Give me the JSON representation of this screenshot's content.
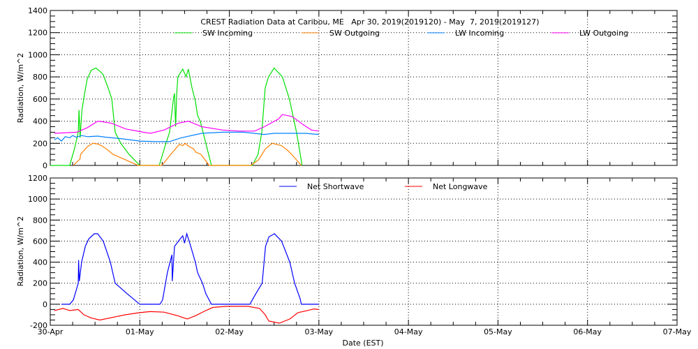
{
  "chart_data": [
    {
      "type": "line",
      "title": "CREST Radiation Data at Caribou, ME   Apr 30, 2019(2019120) - May  7, 2019(2019127)",
      "xlabel": "",
      "ylabel": "Radiation, W/m^2",
      "x_unit": "hours since 30-Apr 00:00 EST",
      "xlim": [
        0,
        168
      ],
      "ylim": [
        0,
        1400
      ],
      "yticks": [
        0,
        200,
        400,
        600,
        800,
        1000,
        1200,
        1400
      ],
      "grid": true,
      "legend_position": "top",
      "series": [
        {
          "name": "SW Incoming",
          "color": "#00e000",
          "points": [
            [
              0,
              0
            ],
            [
              5.2,
              0
            ],
            [
              6.5,
              150
            ],
            [
              7.5,
              300
            ],
            [
              7.7,
              500
            ],
            [
              8,
              250
            ],
            [
              8.5,
              500
            ],
            [
              9.2,
              650
            ],
            [
              9.9,
              780
            ],
            [
              11,
              860
            ],
            [
              12.2,
              880
            ],
            [
              13,
              860
            ],
            [
              14.2,
              820
            ],
            [
              15.5,
              700
            ],
            [
              16.5,
              600
            ],
            [
              17.4,
              300
            ],
            [
              18.9,
              200
            ],
            [
              21.1,
              100
            ],
            [
              24,
              0
            ],
            [
              29.2,
              0
            ],
            [
              31,
              200
            ],
            [
              32,
              300
            ],
            [
              33,
              600
            ],
            [
              33.3,
              650
            ],
            [
              33.6,
              350
            ],
            [
              33.9,
              650
            ],
            [
              34.2,
              800
            ],
            [
              35.5,
              870
            ],
            [
              36.4,
              800
            ],
            [
              37,
              870
            ],
            [
              38,
              700
            ],
            [
              38.9,
              580
            ],
            [
              39.5,
              450
            ],
            [
              40.2,
              400
            ],
            [
              41.7,
              200
            ],
            [
              43.2,
              0
            ],
            [
              54.2,
              0
            ],
            [
              55.7,
              100
            ],
            [
              56.7,
              300
            ],
            [
              57.6,
              700
            ],
            [
              58.5,
              800
            ],
            [
              60,
              880
            ],
            [
              62.2,
              800
            ],
            [
              64.1,
              600
            ],
            [
              66,
              300
            ],
            [
              67.5,
              0
            ]
          ]
        },
        {
          "name": "SW Outgoing",
          "color": "#ff8000",
          "points": [
            [
              6.2,
              0
            ],
            [
              8,
              60
            ],
            [
              8.1,
              100
            ],
            [
              10,
              170
            ],
            [
              11.4,
              200
            ],
            [
              12.5,
              195
            ],
            [
              13.7,
              180
            ],
            [
              15,
              150
            ],
            [
              16.8,
              100
            ],
            [
              18.5,
              75
            ],
            [
              20.2,
              50
            ],
            [
              23.6,
              0
            ],
            [
              29.9,
              0
            ],
            [
              32.3,
              100
            ],
            [
              34.6,
              190
            ],
            [
              35.5,
              180
            ],
            [
              36.2,
              200
            ],
            [
              37.2,
              170
            ],
            [
              38.4,
              150
            ],
            [
              39,
              120
            ],
            [
              40.4,
              100
            ],
            [
              42.6,
              0
            ],
            [
              53.8,
              0
            ],
            [
              55.8,
              50
            ],
            [
              57.7,
              150
            ],
            [
              59.5,
              200
            ],
            [
              61.9,
              180
            ],
            [
              63.5,
              140
            ],
            [
              64.7,
              100
            ],
            [
              67.3,
              0
            ]
          ]
        },
        {
          "name": "LW Incoming",
          "color": "#0080ff",
          "points": [
            [
              1.1,
              230
            ],
            [
              2,
              250
            ],
            [
              3,
              220
            ],
            [
              4,
              260
            ],
            [
              5.2,
              250
            ],
            [
              6,
              270
            ],
            [
              7,
              255
            ],
            [
              8.4,
              270
            ],
            [
              10,
              260
            ],
            [
              12.7,
              265
            ],
            [
              15,
              255
            ],
            [
              19.3,
              240
            ],
            [
              24,
              220
            ],
            [
              28,
              215
            ],
            [
              32,
              215
            ],
            [
              35.1,
              250
            ],
            [
              40.6,
              290
            ],
            [
              46.2,
              300
            ],
            [
              51.8,
              300
            ],
            [
              57.4,
              280
            ],
            [
              60,
              290
            ],
            [
              63,
              290
            ],
            [
              68.3,
              290
            ],
            [
              72,
              280
            ]
          ]
        },
        {
          "name": "LW Outgoing",
          "color": "#ff00ff",
          "points": [
            [
              1.1,
              290
            ],
            [
              7.1,
              300
            ],
            [
              9.9,
              340
            ],
            [
              12.7,
              400
            ],
            [
              14,
              395
            ],
            [
              16.5,
              380
            ],
            [
              20.2,
              330
            ],
            [
              24.9,
              300
            ],
            [
              26.8,
              290
            ],
            [
              30.5,
              320
            ],
            [
              34.2,
              380
            ],
            [
              37,
              400
            ],
            [
              40.6,
              350
            ],
            [
              46.2,
              320
            ],
            [
              50.7,
              310
            ],
            [
              54.8,
              310
            ],
            [
              57.4,
              350
            ],
            [
              61.2,
              420
            ],
            [
              62.2,
              460
            ],
            [
              64.9,
              440
            ],
            [
              67.7,
              370
            ],
            [
              70,
              320
            ],
            [
              72,
              310
            ]
          ]
        }
      ]
    },
    {
      "type": "line",
      "title": "",
      "xlabel": "Date (EST)",
      "ylabel": "Radiation, W/m^2",
      "x_unit": "hours since 30-Apr 00:00 EST",
      "xlim": [
        0,
        168
      ],
      "ylim": [
        -200,
        1200
      ],
      "yticks": [
        -200,
        0,
        200,
        400,
        600,
        800,
        1000,
        1200
      ],
      "xticks": [
        "30-Apr",
        "01-May",
        "02-May",
        "03-May",
        "04-May",
        "05-May",
        "06-May",
        "07-May"
      ],
      "grid": true,
      "legend_position": "top",
      "series": [
        {
          "name": "Net Shortwave",
          "color": "#0000ff",
          "points": [
            [
              3,
              0
            ],
            [
              5.2,
              0
            ],
            [
              6.2,
              40
            ],
            [
              7.5,
              200
            ],
            [
              7.6,
              420
            ],
            [
              7.8,
              220
            ],
            [
              8.4,
              400
            ],
            [
              9.4,
              550
            ],
            [
              10.3,
              620
            ],
            [
              11.8,
              670
            ],
            [
              12.7,
              670
            ],
            [
              14.2,
              600
            ],
            [
              16.1,
              400
            ],
            [
              17.4,
              200
            ],
            [
              20.6,
              100
            ],
            [
              24,
              0
            ],
            [
              29.4,
              0
            ],
            [
              30.1,
              40
            ],
            [
              31.4,
              300
            ],
            [
              32.6,
              470
            ],
            [
              32.7,
              220
            ],
            [
              33.3,
              550
            ],
            [
              34.8,
              620
            ],
            [
              35.5,
              650
            ],
            [
              36,
              580
            ],
            [
              36.6,
              670
            ],
            [
              37.4,
              580
            ],
            [
              38.9,
              400
            ],
            [
              39.5,
              300
            ],
            [
              40.8,
              200
            ],
            [
              41.7,
              100
            ],
            [
              43.2,
              0
            ],
            [
              53.5,
              0
            ],
            [
              55.1,
              100
            ],
            [
              56.8,
              200
            ],
            [
              57.7,
              550
            ],
            [
              58.6,
              640
            ],
            [
              60.1,
              670
            ],
            [
              62,
              600
            ],
            [
              64.2,
              400
            ],
            [
              65.5,
              200
            ],
            [
              67,
              50
            ],
            [
              67.3,
              0
            ],
            [
              72,
              0
            ]
          ]
        },
        {
          "name": "Net Longwave",
          "color": "#ff0000",
          "points": [
            [
              1.1,
              -60
            ],
            [
              3.4,
              -40
            ],
            [
              5.2,
              -60
            ],
            [
              7.5,
              -50
            ],
            [
              9,
              -100
            ],
            [
              10.9,
              -130
            ],
            [
              13.3,
              -150
            ],
            [
              17.4,
              -120
            ],
            [
              20.2,
              -100
            ],
            [
              24,
              -80
            ],
            [
              26.8,
              -70
            ],
            [
              30.5,
              -75
            ],
            [
              34.2,
              -110
            ],
            [
              36.7,
              -140
            ],
            [
              38.9,
              -110
            ],
            [
              41.7,
              -60
            ],
            [
              43.6,
              -30
            ],
            [
              47.3,
              -20
            ],
            [
              53,
              -20
            ],
            [
              56.1,
              -40
            ],
            [
              57.6,
              -100
            ],
            [
              58.6,
              -160
            ],
            [
              61.4,
              -180
            ],
            [
              64.2,
              -140
            ],
            [
              66.4,
              -80
            ],
            [
              68.9,
              -60
            ],
            [
              70.7,
              -45
            ],
            [
              72,
              -50
            ]
          ]
        }
      ]
    }
  ]
}
